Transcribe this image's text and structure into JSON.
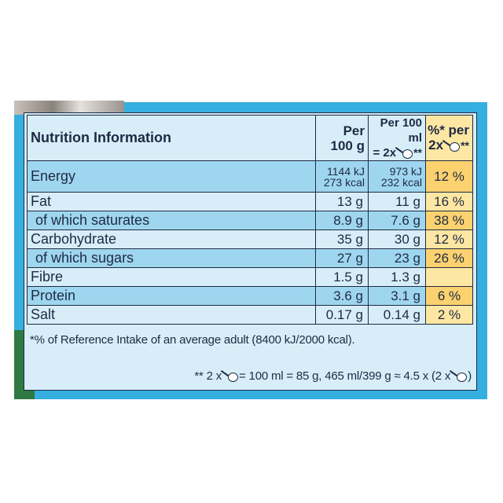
{
  "table": {
    "title": "Nutrition Information",
    "columns": {
      "per100g_line1": "Per",
      "per100g_line2": "100 g",
      "per100ml_line1": "Per 100 ml",
      "per100ml_line2a": "= 2x",
      "per100ml_line2b": "**",
      "ri_line1": "%* per",
      "ri_line2a": "2x",
      "ri_line2b": "**"
    },
    "rows": [
      {
        "label": "Energy",
        "per100g_a": "1144 kJ",
        "per100g_b": "273 kcal",
        "per100ml_a": "973 kJ",
        "per100ml_b": "232 kcal",
        "ri": "12 %"
      },
      {
        "label": "Fat",
        "per100g": "13 g",
        "per100ml": "11 g",
        "ri": "16 %"
      },
      {
        "label": "of which saturates",
        "per100g": "8.9 g",
        "per100ml": "7.6 g",
        "ri": "38 %"
      },
      {
        "label": "Carbohydrate",
        "per100g": "35 g",
        "per100ml": "30 g",
        "ri": "12 %"
      },
      {
        "label": "of which sugars",
        "per100g": "27 g",
        "per100ml": "23 g",
        "ri": "26 %"
      },
      {
        "label": "Fibre",
        "per100g": "1.5 g",
        "per100ml": "1.3 g",
        "ri": ""
      },
      {
        "label": "Protein",
        "per100g": "3.6 g",
        "per100ml": "3.1 g",
        "ri": "6 %"
      },
      {
        "label": "Salt",
        "per100g": "0.17 g",
        "per100ml": "0.14 g",
        "ri": "2 %"
      }
    ]
  },
  "footnote_ri": "*% of Reference Intake of an average adult (8400 kJ/2000 kcal).",
  "footnote_serving": {
    "part1": "** 2 x",
    "part2": "= 100 ml = 85 g, 465 ml/399 g ≈ 4.5 x (2 x",
    "part3": ")"
  },
  "icons": [
    "scoop-icon"
  ],
  "colors": {
    "pack_blue": "#35aee0",
    "panel_light": "#d7eef9",
    "row_shade": "#9fd6ef",
    "ri_light": "#fde7a2",
    "ri_highlight": "#fbd26f",
    "text": "#1f2a44"
  }
}
